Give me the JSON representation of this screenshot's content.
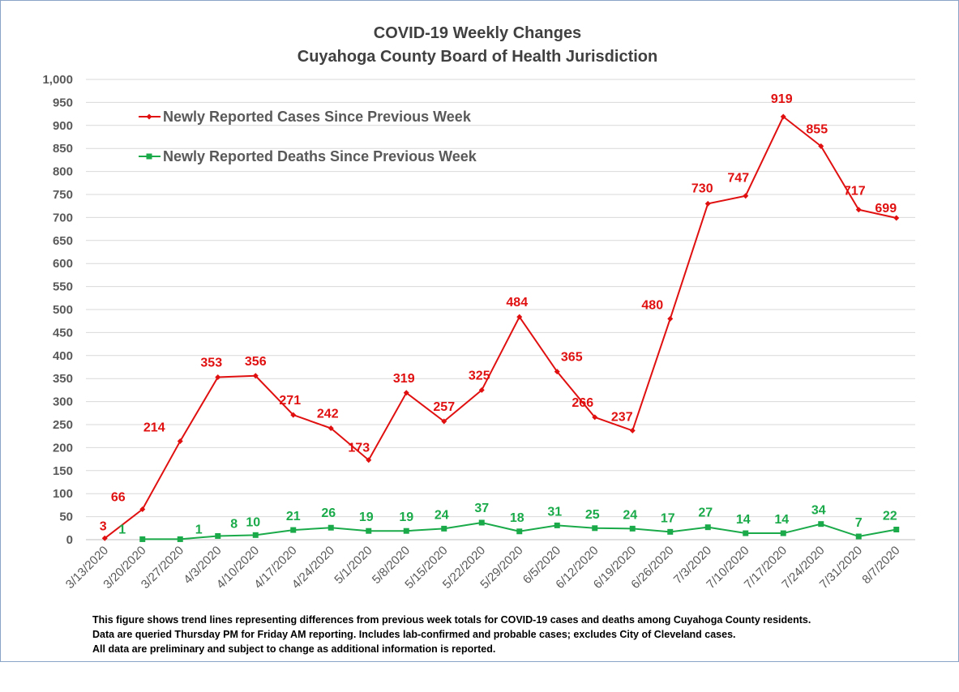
{
  "chart_data": {
    "type": "line",
    "title": [
      "COVID-19 Weekly Changes",
      "Cuyahoga County Board of Health Jurisdiction"
    ],
    "xlabel": "",
    "ylabel": "",
    "ylim": [
      0,
      1000
    ],
    "y_tick_step": 50,
    "grid": true,
    "legend_position": "top-left",
    "categories": [
      "3/13/2020",
      "3/20/2020",
      "3/27/2020",
      "4/3/2020",
      "4/10/2020",
      "4/17/2020",
      "4/24/2020",
      "5/1/2020",
      "5/8/2020",
      "5/15/2020",
      "5/22/2020",
      "5/29/2020",
      "6/5/2020",
      "6/12/2020",
      "6/19/2020",
      "6/26/2020",
      "7/3/2020",
      "7/10/2020",
      "7/17/2020",
      "7/24/2020",
      "7/31/2020",
      "8/7/2020"
    ],
    "series": [
      {
        "name": "Newly Reported Cases Since Previous Week",
        "color": "#e01010",
        "marker": "diamond",
        "values": [
          3,
          66,
          214,
          353,
          356,
          271,
          242,
          173,
          319,
          257,
          325,
          484,
          365,
          266,
          237,
          480,
          730,
          747,
          919,
          855,
          717,
          699
        ]
      },
      {
        "name": "Newly Reported Deaths Since Previous Week",
        "color": "#1aaa4a",
        "marker": "square",
        "values": [
          null,
          1,
          1,
          8,
          10,
          21,
          26,
          19,
          19,
          24,
          37,
          18,
          31,
          25,
          24,
          17,
          27,
          14,
          14,
          34,
          7,
          22
        ]
      }
    ]
  },
  "footnote": [
    "This figure shows trend lines representing differences from previous week totals for COVID-19 cases and deaths among Cuyahoga County residents.",
    "Data are queried Thursday PM for Friday AM reporting. Includes lab-confirmed and probable cases; excludes City of Cleveland cases.",
    "All data are preliminary and subject to change as additional information is reported."
  ]
}
